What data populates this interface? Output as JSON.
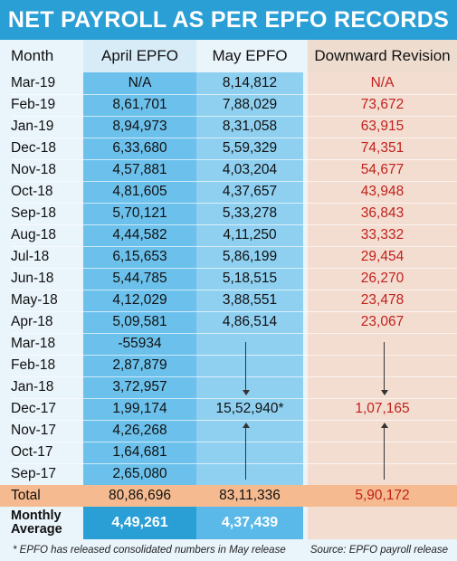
{
  "title": "NET PAYROLL AS PER EPFO RECORDS",
  "columns": {
    "month": "Month",
    "april": "April EPFO",
    "may": "May EPFO",
    "revision": "Downward Revision"
  },
  "rows": [
    {
      "month": "Mar-19",
      "april": "N/A",
      "may": "8,14,812",
      "revision": "N/A"
    },
    {
      "month": "Feb-19",
      "april": "8,61,701",
      "may": "7,88,029",
      "revision": "73,672"
    },
    {
      "month": "Jan-19",
      "april": "8,94,973",
      "may": "8,31,058",
      "revision": "63,915"
    },
    {
      "month": "Dec-18",
      "april": "6,33,680",
      "may": "5,59,329",
      "revision": "74,351"
    },
    {
      "month": "Nov-18",
      "april": "4,57,881",
      "may": "4,03,204",
      "revision": "54,677"
    },
    {
      "month": "Oct-18",
      "april": "4,81,605",
      "may": "4,37,657",
      "revision": "43,948"
    },
    {
      "month": "Sep-18",
      "april": "5,70,121",
      "may": "5,33,278",
      "revision": "36,843"
    },
    {
      "month": "Aug-18",
      "april": "4,44,582",
      "may": "4,11,250",
      "revision": "33,332"
    },
    {
      "month": "Jul-18",
      "april": "6,15,653",
      "may": "5,86,199",
      "revision": "29,454"
    },
    {
      "month": "Jun-18",
      "april": "5,44,785",
      "may": "5,18,515",
      "revision": "26,270"
    },
    {
      "month": "May-18",
      "april": "4,12,029",
      "may": "3,88,551",
      "revision": "23,478"
    },
    {
      "month": "Apr-18",
      "april": "5,09,581",
      "may": "4,86,514",
      "revision": "23,067"
    },
    {
      "month": "Mar-18",
      "april": "-55934",
      "may": "",
      "revision": ""
    },
    {
      "month": "Feb-18",
      "april": "2,87,879",
      "may": "",
      "revision": ""
    },
    {
      "month": "Jan-18",
      "april": "3,72,957",
      "may": "",
      "revision": ""
    },
    {
      "month": "Dec-17",
      "april": "1,99,174",
      "may": "15,52,940*",
      "revision": "1,07,165"
    },
    {
      "month": "Nov-17",
      "april": "4,26,268",
      "may": "",
      "revision": ""
    },
    {
      "month": "Oct-17",
      "april": "1,64,681",
      "may": "",
      "revision": ""
    },
    {
      "month": "Sep-17",
      "april": "2,65,080",
      "may": "",
      "revision": ""
    }
  ],
  "total": {
    "label": "Total",
    "april": "80,86,696",
    "may": "83,11,336",
    "revision": "5,90,172"
  },
  "average": {
    "label_line1": "Monthly",
    "label_line2": "Average",
    "april": "4,49,261",
    "may": "4,37,439"
  },
  "footer": {
    "note": "* EPFO has released consolidated numbers in May release",
    "source": "Source: EPFO payroll release"
  },
  "colors": {
    "title_bg": "#2a9fd6",
    "april_col": "#6cc1ec",
    "may_col": "#8fd0f1",
    "revision_col": "#f3ddd1",
    "revision_text": "#c0211c",
    "total_bg": "#f5ba8f"
  }
}
